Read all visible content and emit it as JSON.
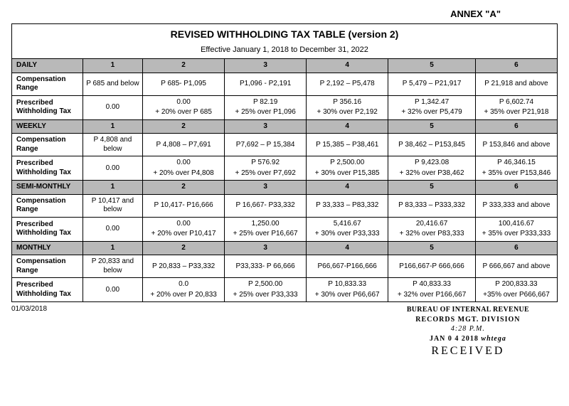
{
  "annex": "ANNEX \"A\"",
  "title": "REVISED WITHHOLDING TAX TABLE (version 2)",
  "subtitle": "Effective January 1, 2018 to December 31, 2022",
  "columns": [
    "1",
    "2",
    "3",
    "4",
    "5",
    "6"
  ],
  "row_labels": {
    "comp": "Compensation Range",
    "tax": "Prescribed Withholding Tax"
  },
  "sections": [
    {
      "name": "DAILY",
      "comp": [
        "P 685 and below",
        "P 685- P1,095",
        "P1,096 - P2,191",
        "P 2,192 – P5,478",
        "P 5,479 – P21,917",
        "P 21,918 and above"
      ],
      "tax": [
        {
          "base": "0.00",
          "over": ""
        },
        {
          "base": "0.00",
          "over": "+ 20% over P 685"
        },
        {
          "base": "P 82.19",
          "over": "+ 25% over P1,096"
        },
        {
          "base": "P 356.16",
          "over": "+ 30% over P2,192"
        },
        {
          "base": "P 1,342.47",
          "over": "+ 32% over P5,479"
        },
        {
          "base": "P 6,602.74",
          "over": "+ 35% over P21,918"
        }
      ]
    },
    {
      "name": "WEEKLY",
      "comp": [
        "P 4,808 and below",
        "P 4,808 – P7,691",
        "P7,692 – P 15,384",
        "P 15,385 – P38,461",
        "P 38,462 – P153,845",
        "P 153,846 and above"
      ],
      "tax": [
        {
          "base": "0.00",
          "over": ""
        },
        {
          "base": "0.00",
          "over": "+ 20% over  P4,808"
        },
        {
          "base": "P 576.92",
          "over": "+ 25% over P7,692"
        },
        {
          "base": "P 2,500.00",
          "over": "+ 30% over P15,385"
        },
        {
          "base": "P 9,423.08",
          "over": "+ 32% over P38,462"
        },
        {
          "base": "P 46,346.15",
          "over": "+ 35% over P153,846"
        }
      ]
    },
    {
      "name": "SEMI-MONTHLY",
      "comp": [
        "P 10,417 and below",
        "P 10,417- P16,666",
        "P 16,667- P33,332",
        "P 33,333 – P83,332",
        "P 83,333 – P333,332",
        "P 333,333 and above"
      ],
      "tax": [
        {
          "base": "0.00",
          "over": ""
        },
        {
          "base": "0.00",
          "over": "+ 20% over P10,417"
        },
        {
          "base": "1,250.00",
          "over": "+ 25% over P16,667"
        },
        {
          "base": "5,416.67",
          "over": "+ 30% over P33,333"
        },
        {
          "base": "20,416.67",
          "over": "+ 32% over P83,333"
        },
        {
          "base": "100,416.67",
          "over": "+ 35% over P333,333"
        }
      ]
    },
    {
      "name": "MONTHLY",
      "comp": [
        "P 20,833 and below",
        "P 20,833 – P33,332",
        "P33,333- P 66,666",
        "P66,667-P166,666",
        "P166,667-P 666,666",
        "P 666,667 and above"
      ],
      "tax": [
        {
          "base": "0.00",
          "over": ""
        },
        {
          "base": "0.0",
          "over": "+ 20% over P 20,833"
        },
        {
          "base": "P 2,500.00",
          "over": "+ 25% over P33,333"
        },
        {
          "base": "P 10,833.33",
          "over": "+ 30% over P66,667"
        },
        {
          "base": "P 40,833.33",
          "over": "+ 32% over P166,667"
        },
        {
          "base": "P 200,833.33",
          "over": "+35% over P666,667"
        }
      ]
    }
  ],
  "footer_date": "01/03/2018",
  "stamp": {
    "line1": "BUREAU OF INTERNAL REVENUE",
    "line2": "RECORDS MGT. DIVISION",
    "time": "4:28 P.M.",
    "date": "JAN 0 4 2018",
    "sig": "whtega",
    "received": "RECEIVED"
  }
}
